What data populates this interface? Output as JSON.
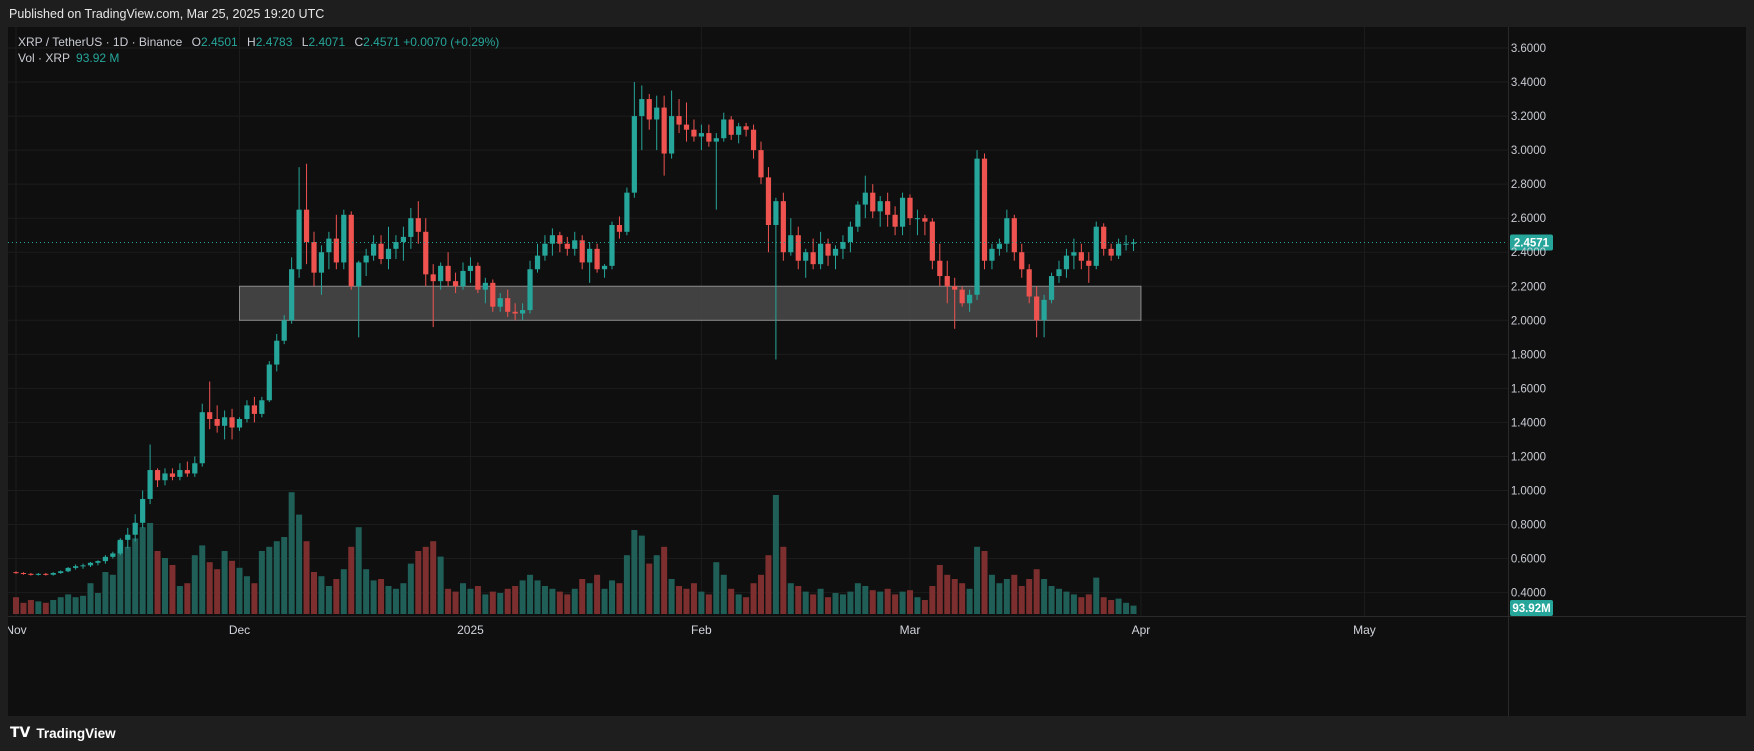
{
  "header": {
    "published": "Published on TradingView.com, Mar 25, 2025 19:20 UTC"
  },
  "legend": {
    "symbol": "XRP / TetherUS · 1D · Binance",
    "o_label": "O",
    "o": "2.4501",
    "h_label": "H",
    "h": "2.4783",
    "l_label": "L",
    "l": "2.4071",
    "c_label": "C",
    "c": "2.4571",
    "change": "+0.0070 (+0.29%)",
    "vol_label": "Vol · XRP",
    "vol_value": "93.92 M"
  },
  "footer": {
    "brand": "TradingView",
    "logo": "TV"
  },
  "colors": {
    "up": "#26a69a",
    "down": "#ef5350",
    "up_vol": "#1f5f58",
    "down_vol": "#7c2f2e",
    "zone": "#4a4a4a",
    "bg": "#0f0f0f"
  },
  "chart_data": {
    "type": "candlestick",
    "symbol": "XRP / TetherUS",
    "interval": "1D",
    "exchange": "Binance",
    "y_axis": {
      "ticks": [
        "0.4000",
        "0.6000",
        "0.8000",
        "1.0000",
        "1.2000",
        "1.4000",
        "1.6000",
        "1.8000",
        "2.0000",
        "2.2000",
        "2.4000",
        "2.6000",
        "2.8000",
        "3.0000",
        "3.2000",
        "3.4000",
        "3.6000"
      ],
      "ylim": [
        0.28,
        3.7
      ]
    },
    "x_axis": {
      "ticks": [
        {
          "label": "Nov",
          "date": "2024-11-01"
        },
        {
          "label": "Dec",
          "date": "2024-12-01"
        },
        {
          "label": "2025",
          "date": "2025-01-01"
        },
        {
          "label": "Feb",
          "date": "2025-02-01"
        },
        {
          "label": "Mar",
          "date": "2025-03-01"
        },
        {
          "label": "Apr",
          "date": "2025-04-01"
        },
        {
          "label": "May",
          "date": "2025-05-01"
        }
      ],
      "first_candle_date": "2024-11-01",
      "range_end_date": "2025-05-12"
    },
    "last_price": "2.4571",
    "last_volume": "93.92M",
    "zone": {
      "low": 2.0,
      "high": 2.2,
      "from": "2024-12-01",
      "to": "2025-04-01"
    },
    "volume_max": 100,
    "candles": [
      [
        0.52,
        0.525,
        0.51,
        0.515,
        12
      ],
      [
        0.515,
        0.52,
        0.505,
        0.51,
        8
      ],
      [
        0.51,
        0.515,
        0.5,
        0.505,
        10
      ],
      [
        0.505,
        0.515,
        0.5,
        0.51,
        9
      ],
      [
        0.51,
        0.515,
        0.5,
        0.505,
        8
      ],
      [
        0.505,
        0.52,
        0.5,
        0.515,
        10
      ],
      [
        0.515,
        0.53,
        0.51,
        0.525,
        12
      ],
      [
        0.525,
        0.55,
        0.52,
        0.545,
        14
      ],
      [
        0.545,
        0.565,
        0.535,
        0.555,
        12
      ],
      [
        0.555,
        0.57,
        0.54,
        0.56,
        13
      ],
      [
        0.56,
        0.58,
        0.55,
        0.575,
        22
      ],
      [
        0.575,
        0.59,
        0.56,
        0.585,
        15
      ],
      [
        0.585,
        0.62,
        0.57,
        0.61,
        30
      ],
      [
        0.61,
        0.64,
        0.6,
        0.63,
        28
      ],
      [
        0.63,
        0.72,
        0.62,
        0.71,
        52
      ],
      [
        0.71,
        0.78,
        0.66,
        0.74,
        48
      ],
      [
        0.74,
        0.86,
        0.7,
        0.81,
        54
      ],
      [
        0.81,
        1.0,
        0.78,
        0.95,
        62
      ],
      [
        0.95,
        1.27,
        0.92,
        1.12,
        65
      ],
      [
        1.12,
        1.13,
        1.02,
        1.06,
        45
      ],
      [
        1.06,
        1.13,
        1.03,
        1.1,
        40
      ],
      [
        1.1,
        1.13,
        1.06,
        1.08,
        35
      ],
      [
        1.08,
        1.16,
        1.06,
        1.12,
        20
      ],
      [
        1.12,
        1.17,
        1.08,
        1.1,
        22
      ],
      [
        1.1,
        1.2,
        1.08,
        1.16,
        42
      ],
      [
        1.16,
        1.51,
        1.14,
        1.46,
        49
      ],
      [
        1.46,
        1.64,
        1.36,
        1.42,
        37
      ],
      [
        1.42,
        1.5,
        1.34,
        1.38,
        32
      ],
      [
        1.38,
        1.47,
        1.3,
        1.43,
        45
      ],
      [
        1.43,
        1.48,
        1.3,
        1.37,
        38
      ],
      [
        1.37,
        1.43,
        1.35,
        1.42,
        33
      ],
      [
        1.42,
        1.53,
        1.4,
        1.5,
        27
      ],
      [
        1.5,
        1.55,
        1.4,
        1.45,
        22
      ],
      [
        1.45,
        1.55,
        1.43,
        1.53,
        45
      ],
      [
        1.53,
        1.76,
        1.52,
        1.74,
        48
      ],
      [
        1.74,
        1.92,
        1.7,
        1.88,
        52
      ],
      [
        1.88,
        2.03,
        1.86,
        2.0,
        55
      ],
      [
        2.0,
        2.37,
        1.98,
        2.3,
        87
      ],
      [
        2.3,
        2.9,
        2.25,
        2.65,
        71
      ],
      [
        2.65,
        2.92,
        2.33,
        2.46,
        52
      ],
      [
        2.46,
        2.52,
        2.2,
        2.28,
        30
      ],
      [
        2.28,
        2.44,
        2.15,
        2.4,
        27
      ],
      [
        2.4,
        2.52,
        2.3,
        2.48,
        20
      ],
      [
        2.48,
        2.62,
        2.3,
        2.34,
        25
      ],
      [
        2.34,
        2.65,
        2.3,
        2.62,
        32
      ],
      [
        2.62,
        2.64,
        2.18,
        2.2,
        48
      ],
      [
        2.2,
        2.35,
        1.9,
        2.34,
        62
      ],
      [
        2.34,
        2.42,
        2.26,
        2.38,
        32
      ],
      [
        2.38,
        2.5,
        2.35,
        2.45,
        24
      ],
      [
        2.45,
        2.5,
        2.33,
        2.36,
        25
      ],
      [
        2.36,
        2.55,
        2.3,
        2.42,
        20
      ],
      [
        2.42,
        2.5,
        2.36,
        2.46,
        18
      ],
      [
        2.46,
        2.55,
        2.35,
        2.49,
        22
      ],
      [
        2.49,
        2.66,
        2.42,
        2.6,
        36
      ],
      [
        2.6,
        2.7,
        2.45,
        2.52,
        45
      ],
      [
        2.52,
        2.6,
        2.2,
        2.27,
        48
      ],
      [
        2.27,
        2.33,
        1.96,
        2.23,
        52
      ],
      [
        2.23,
        2.34,
        2.18,
        2.32,
        41
      ],
      [
        2.32,
        2.4,
        2.2,
        2.23,
        18
      ],
      [
        2.23,
        2.28,
        2.16,
        2.2,
        16
      ],
      [
        2.2,
        2.34,
        2.18,
        2.29,
        22
      ],
      [
        2.29,
        2.37,
        2.22,
        2.32,
        18
      ],
      [
        2.32,
        2.34,
        2.16,
        2.18,
        20
      ],
      [
        2.18,
        2.25,
        2.1,
        2.22,
        14
      ],
      [
        2.22,
        2.24,
        2.05,
        2.08,
        16
      ],
      [
        2.08,
        2.16,
        2.05,
        2.13,
        15
      ],
      [
        2.13,
        2.18,
        2.02,
        2.05,
        18
      ],
      [
        2.05,
        2.1,
        2.0,
        2.04,
        20
      ],
      [
        2.04,
        2.1,
        2.0,
        2.06,
        24
      ],
      [
        2.06,
        2.35,
        2.04,
        2.3,
        28
      ],
      [
        2.3,
        2.45,
        2.28,
        2.38,
        24
      ],
      [
        2.38,
        2.5,
        2.35,
        2.45,
        20
      ],
      [
        2.45,
        2.54,
        2.38,
        2.5,
        18
      ],
      [
        2.5,
        2.52,
        2.4,
        2.45,
        16
      ],
      [
        2.45,
        2.49,
        2.38,
        2.42,
        14
      ],
      [
        2.42,
        2.52,
        2.38,
        2.47,
        18
      ],
      [
        2.47,
        2.5,
        2.3,
        2.34,
        25
      ],
      [
        2.34,
        2.46,
        2.22,
        2.42,
        22
      ],
      [
        2.42,
        2.45,
        2.28,
        2.3,
        28
      ],
      [
        2.3,
        2.33,
        2.25,
        2.32,
        18
      ],
      [
        2.32,
        2.58,
        2.3,
        2.56,
        24
      ],
      [
        2.56,
        2.61,
        2.48,
        2.52,
        22
      ],
      [
        2.52,
        2.78,
        2.5,
        2.75,
        42
      ],
      [
        2.75,
        3.4,
        2.72,
        3.2,
        60
      ],
      [
        3.2,
        3.38,
        3.0,
        3.3,
        56
      ],
      [
        3.3,
        3.33,
        3.12,
        3.18,
        36
      ],
      [
        3.18,
        3.32,
        3.0,
        3.25,
        42
      ],
      [
        3.25,
        3.32,
        2.85,
        2.98,
        48
      ],
      [
        2.98,
        3.35,
        2.95,
        3.2,
        25
      ],
      [
        3.2,
        3.3,
        3.1,
        3.15,
        20
      ],
      [
        3.15,
        3.28,
        3.05,
        3.12,
        18
      ],
      [
        3.12,
        3.18,
        3.05,
        3.08,
        22
      ],
      [
        3.08,
        3.15,
        3.0,
        3.1,
        16
      ],
      [
        3.1,
        3.15,
        3.02,
        3.05,
        14
      ],
      [
        3.05,
        3.1,
        2.65,
        3.07,
        37
      ],
      [
        3.07,
        3.22,
        3.05,
        3.18,
        28
      ],
      [
        3.18,
        3.2,
        3.06,
        3.09,
        18
      ],
      [
        3.09,
        3.16,
        3.04,
        3.14,
        14
      ],
      [
        3.14,
        3.16,
        3.08,
        3.12,
        12
      ],
      [
        3.12,
        3.15,
        2.95,
        3.0,
        22
      ],
      [
        3.0,
        3.05,
        2.8,
        2.84,
        28
      ],
      [
        2.84,
        2.9,
        2.4,
        2.56,
        42
      ],
      [
        2.56,
        2.72,
        1.77,
        2.7,
        85
      ],
      [
        2.7,
        2.75,
        2.35,
        2.4,
        48
      ],
      [
        2.4,
        2.6,
        2.38,
        2.5,
        22
      ],
      [
        2.5,
        2.55,
        2.3,
        2.35,
        20
      ],
      [
        2.35,
        2.42,
        2.25,
        2.4,
        16
      ],
      [
        2.4,
        2.48,
        2.3,
        2.33,
        14
      ],
      [
        2.33,
        2.52,
        2.3,
        2.45,
        18
      ],
      [
        2.45,
        2.48,
        2.32,
        2.38,
        12
      ],
      [
        2.38,
        2.44,
        2.3,
        2.42,
        15
      ],
      [
        2.42,
        2.5,
        2.36,
        2.46,
        14
      ],
      [
        2.46,
        2.58,
        2.4,
        2.55,
        16
      ],
      [
        2.55,
        2.7,
        2.52,
        2.68,
        22
      ],
      [
        2.68,
        2.85,
        2.6,
        2.75,
        20
      ],
      [
        2.75,
        2.8,
        2.6,
        2.64,
        17
      ],
      [
        2.64,
        2.73,
        2.55,
        2.7,
        16
      ],
      [
        2.7,
        2.75,
        2.55,
        2.62,
        18
      ],
      [
        2.62,
        2.67,
        2.5,
        2.55,
        14
      ],
      [
        2.55,
        2.75,
        2.5,
        2.72,
        16
      ],
      [
        2.72,
        2.74,
        2.56,
        2.6,
        17
      ],
      [
        2.6,
        2.65,
        2.5,
        2.6,
        12
      ],
      [
        2.6,
        2.62,
        2.5,
        2.58,
        10
      ],
      [
        2.58,
        2.6,
        2.3,
        2.35,
        20
      ],
      [
        2.35,
        2.45,
        2.2,
        2.26,
        35
      ],
      [
        2.26,
        2.35,
        2.1,
        2.2,
        28
      ],
      [
        2.2,
        2.25,
        1.95,
        2.18,
        25
      ],
      [
        2.18,
        2.2,
        2.08,
        2.1,
        22
      ],
      [
        2.1,
        2.18,
        2.05,
        2.15,
        18
      ],
      [
        2.15,
        3.0,
        2.12,
        2.95,
        48
      ],
      [
        2.95,
        2.98,
        2.3,
        2.35,
        45
      ],
      [
        2.35,
        2.45,
        2.3,
        2.42,
        28
      ],
      [
        2.42,
        2.48,
        2.38,
        2.45,
        22
      ],
      [
        2.45,
        2.65,
        2.4,
        2.6,
        25
      ],
      [
        2.6,
        2.62,
        2.35,
        2.4,
        28
      ],
      [
        2.4,
        2.45,
        2.25,
        2.3,
        20
      ],
      [
        2.3,
        2.33,
        2.1,
        2.14,
        25
      ],
      [
        2.14,
        2.2,
        1.9,
        2.0,
        32
      ],
      [
        2.0,
        2.15,
        1.9,
        2.12,
        25
      ],
      [
        2.12,
        2.28,
        2.1,
        2.26,
        20
      ],
      [
        2.26,
        2.35,
        2.22,
        2.3,
        18
      ],
      [
        2.3,
        2.42,
        2.25,
        2.38,
        16
      ],
      [
        2.38,
        2.48,
        2.3,
        2.4,
        14
      ],
      [
        2.4,
        2.45,
        2.3,
        2.35,
        12
      ],
      [
        2.35,
        2.4,
        2.22,
        2.32,
        14
      ],
      [
        2.32,
        2.58,
        2.3,
        2.55,
        26
      ],
      [
        2.55,
        2.57,
        2.38,
        2.42,
        12
      ],
      [
        2.42,
        2.45,
        2.35,
        2.38,
        10
      ],
      [
        2.38,
        2.48,
        2.36,
        2.45,
        11
      ],
      [
        2.45,
        2.5,
        2.41,
        2.4501,
        8
      ],
      [
        2.4501,
        2.4783,
        2.4071,
        2.4571,
        6
      ]
    ]
  }
}
